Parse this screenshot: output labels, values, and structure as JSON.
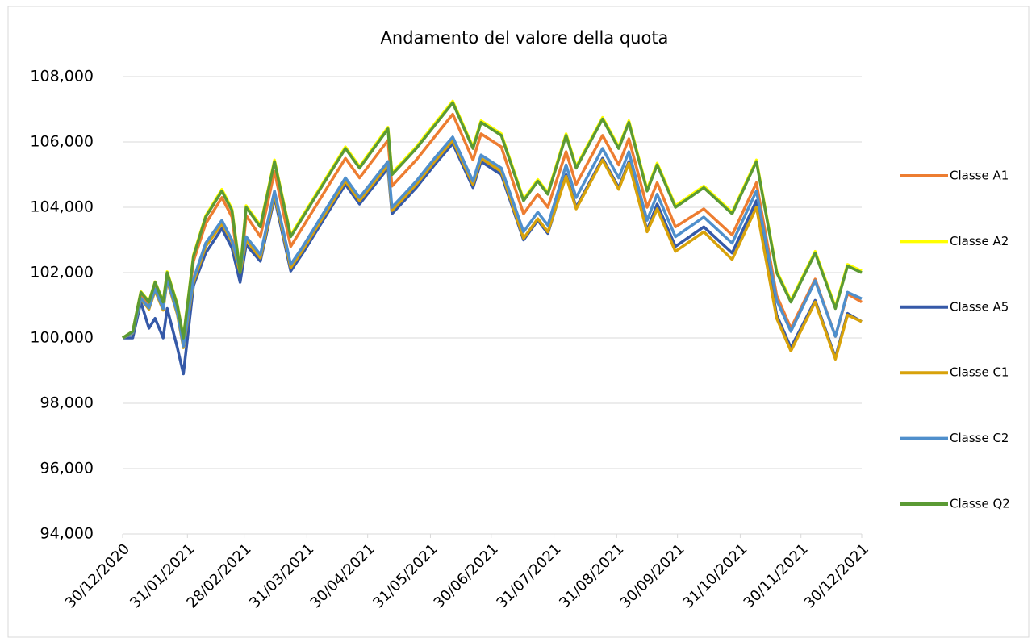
{
  "chart_data": {
    "type": "line",
    "title": "Andamento del valore della quota",
    "x": [
      "30/12/2020",
      "04/01/2021",
      "08/01/2021",
      "12/01/2021",
      "15/01/2021",
      "19/01/2021",
      "21/01/2021",
      "26/01/2021",
      "29/01/2021",
      "03/02/2021",
      "09/02/2021",
      "17/02/2021",
      "22/02/2021",
      "26/02/2021",
      "01/03/2021",
      "08/03/2021",
      "15/03/2021",
      "23/03/2021",
      "29/03/2021",
      "08/04/2021",
      "19/04/2021",
      "26/04/2021",
      "10/05/2021",
      "12/05/2021",
      "24/05/2021",
      "02/06/2021",
      "11/06/2021",
      "21/06/2021",
      "25/06/2021",
      "05/07/2021",
      "16/07/2021",
      "23/07/2021",
      "28/07/2021",
      "06/08/2021",
      "11/08/2021",
      "24/08/2021",
      "01/09/2021",
      "06/09/2021",
      "15/09/2021",
      "20/09/2021",
      "29/09/2021",
      "13/10/2021",
      "27/10/2021",
      "08/11/2021",
      "18/11/2021",
      "25/11/2021",
      "07/12/2021",
      "17/12/2021",
      "23/12/2021",
      "30/12/2021"
    ],
    "series": [
      {
        "name": "Classe A1",
        "color": "#ed7d31",
        "values": [
          100.0,
          100.18,
          101.35,
          101.05,
          101.64,
          101.04,
          101.93,
          100.93,
          99.93,
          102.35,
          103.5,
          104.3,
          103.7,
          101.8,
          103.75,
          103.1,
          105.1,
          102.8,
          103.4,
          104.4,
          105.5,
          104.9,
          106.05,
          104.65,
          105.45,
          106.15,
          106.85,
          105.45,
          106.25,
          105.85,
          103.8,
          104.4,
          104.0,
          105.7,
          104.7,
          106.2,
          105.3,
          106.1,
          104.0,
          104.75,
          103.4,
          103.95,
          103.15,
          104.75,
          101.3,
          100.3,
          101.8,
          100.05,
          101.35,
          101.1
        ]
      },
      {
        "name": "Classe A2",
        "color": "#ffff00",
        "values": [
          100.0,
          100.2,
          101.42,
          101.12,
          101.72,
          101.12,
          102.03,
          101.03,
          100.03,
          102.54,
          103.74,
          104.55,
          103.95,
          102.05,
          104.05,
          103.45,
          105.45,
          103.15,
          103.75,
          104.75,
          105.85,
          105.25,
          106.45,
          105.05,
          105.85,
          106.55,
          107.25,
          105.85,
          106.65,
          106.25,
          104.25,
          104.85,
          104.45,
          106.25,
          105.25,
          106.75,
          105.85,
          106.65,
          104.55,
          105.35,
          104.05,
          104.65,
          103.85,
          105.45,
          102.05,
          101.15,
          102.65,
          100.95,
          102.25,
          102.05
        ]
      },
      {
        "name": "Classe A5",
        "color": "#3559a8",
        "values": [
          100.0,
          100.0,
          101.1,
          100.3,
          100.6,
          100.0,
          100.9,
          99.7,
          98.9,
          101.6,
          102.6,
          103.35,
          102.75,
          101.7,
          102.85,
          102.35,
          104.3,
          102.05,
          102.6,
          103.6,
          104.7,
          104.1,
          105.2,
          103.8,
          104.6,
          105.3,
          105.95,
          104.6,
          105.4,
          105.0,
          103.0,
          103.6,
          103.2,
          105.0,
          104.0,
          105.5,
          104.6,
          105.4,
          103.3,
          104.1,
          102.8,
          103.4,
          102.6,
          104.2,
          100.7,
          99.7,
          101.15,
          99.4,
          100.75,
          100.5
        ]
      },
      {
        "name": "Classe C1",
        "color": "#d8a20a",
        "values": [
          100.0,
          100.15,
          101.2,
          100.88,
          101.45,
          100.85,
          101.75,
          100.72,
          99.7,
          101.7,
          102.8,
          103.5,
          102.95,
          102.0,
          103.0,
          102.45,
          104.4,
          102.15,
          102.7,
          103.7,
          104.8,
          104.2,
          105.3,
          103.9,
          104.7,
          105.4,
          106.05,
          104.7,
          105.5,
          105.1,
          103.05,
          103.65,
          103.25,
          104.95,
          103.95,
          105.45,
          104.55,
          105.35,
          103.25,
          103.95,
          102.65,
          103.25,
          102.4,
          104.0,
          100.6,
          99.6,
          101.1,
          99.35,
          100.7,
          100.5
        ]
      },
      {
        "name": "Classe C2",
        "color": "#4f8fcc",
        "values": [
          100.0,
          100.16,
          101.22,
          100.92,
          101.5,
          100.9,
          101.8,
          100.78,
          99.75,
          101.8,
          102.9,
          103.6,
          103.0,
          102.1,
          103.1,
          102.55,
          104.5,
          102.25,
          102.8,
          103.8,
          104.9,
          104.3,
          105.4,
          104.0,
          104.8,
          105.5,
          106.15,
          104.8,
          105.6,
          105.2,
          103.25,
          103.85,
          103.45,
          105.3,
          104.3,
          105.8,
          104.9,
          105.7,
          103.6,
          104.4,
          103.1,
          103.7,
          102.9,
          104.5,
          101.15,
          100.2,
          101.75,
          100.05,
          101.4,
          101.2
        ]
      },
      {
        "name": "Classe Q2",
        "color": "#5b9a34",
        "values": [
          100.0,
          100.2,
          101.4,
          101.1,
          101.7,
          101.1,
          102.0,
          101.0,
          100.0,
          102.5,
          103.7,
          104.5,
          103.9,
          102.0,
          104.0,
          103.4,
          105.4,
          103.1,
          103.7,
          104.7,
          105.8,
          105.2,
          106.4,
          105.0,
          105.8,
          106.5,
          107.2,
          105.8,
          106.6,
          106.2,
          104.2,
          104.8,
          104.4,
          106.2,
          105.2,
          106.7,
          105.8,
          106.6,
          104.5,
          105.3,
          104.0,
          104.6,
          103.8,
          105.4,
          102.0,
          101.1,
          102.6,
          100.9,
          102.2,
          102.0
        ]
      }
    ],
    "xlim": [
      "30/12/2020",
      "30/12/2021"
    ],
    "xticks": [
      "30/12/2020",
      "31/01/2021",
      "28/02/2021",
      "31/03/2021",
      "30/04/2021",
      "31/05/2021",
      "30/06/2021",
      "31/07/2021",
      "31/08/2021",
      "30/09/2021",
      "31/10/2021",
      "30/11/2021",
      "30/12/2021"
    ],
    "ylim": [
      94,
      108
    ],
    "yticks": [
      {
        "value": 94,
        "label": "94,000"
      },
      {
        "value": 96,
        "label": "96,000"
      },
      {
        "value": 98,
        "label": "98,000"
      },
      {
        "value": 100,
        "label": "100,000"
      },
      {
        "value": 102,
        "label": "102,000"
      },
      {
        "value": 104,
        "label": "104,000"
      },
      {
        "value": 106,
        "label": "106,000"
      },
      {
        "value": 108,
        "label": "108,000"
      }
    ],
    "grid": true,
    "legend": "right"
  }
}
